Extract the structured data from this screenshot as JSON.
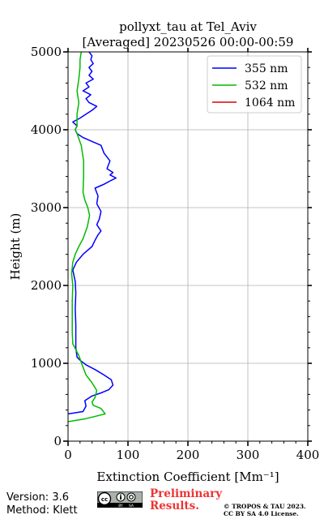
{
  "chart_data": {
    "type": "line",
    "title": "pollyxt_tau at Tel_Aviv",
    "subtitle": "[Averaged] 20230526 00:00-00:59",
    "xlabel": "Extinction Coefficient [Mm⁻¹]",
    "ylabel": "Height (m)",
    "xlim": [
      0,
      400
    ],
    "ylim": [
      0,
      5000
    ],
    "x_ticks": [
      "0",
      "100",
      "200",
      "300",
      "400"
    ],
    "y_ticks": [
      "0",
      "1000",
      "2000",
      "3000",
      "4000",
      "5000"
    ],
    "grid": true,
    "legend_position": "top-right",
    "series": [
      {
        "name": "355 nm",
        "color": "#0000ff",
        "points": [
          [
            0,
            350
          ],
          [
            25,
            380
          ],
          [
            30,
            450
          ],
          [
            28,
            520
          ],
          [
            40,
            580
          ],
          [
            55,
            620
          ],
          [
            68,
            660
          ],
          [
            75,
            720
          ],
          [
            72,
            790
          ],
          [
            60,
            850
          ],
          [
            45,
            920
          ],
          [
            30,
            980
          ],
          [
            20,
            1040
          ],
          [
            15,
            1080
          ],
          [
            13,
            1200
          ],
          [
            13,
            1500
          ],
          [
            12,
            1700
          ],
          [
            13,
            1900
          ],
          [
            12,
            2050
          ],
          [
            8,
            2200
          ],
          [
            14,
            2300
          ],
          [
            25,
            2400
          ],
          [
            40,
            2500
          ],
          [
            45,
            2580
          ],
          [
            50,
            2650
          ],
          [
            55,
            2700
          ],
          [
            48,
            2780
          ],
          [
            52,
            2850
          ],
          [
            55,
            2950
          ],
          [
            48,
            3050
          ],
          [
            50,
            3150
          ],
          [
            45,
            3250
          ],
          [
            60,
            3300
          ],
          [
            72,
            3350
          ],
          [
            80,
            3380
          ],
          [
            70,
            3420
          ],
          [
            75,
            3450
          ],
          [
            65,
            3500
          ],
          [
            70,
            3600
          ],
          [
            60,
            3700
          ],
          [
            55,
            3800
          ],
          [
            40,
            3850
          ],
          [
            25,
            3900
          ],
          [
            15,
            3950
          ],
          [
            12,
            4000
          ],
          [
            15,
            4050
          ],
          [
            8,
            4100
          ],
          [
            20,
            4150
          ],
          [
            30,
            4200
          ],
          [
            40,
            4250
          ],
          [
            48,
            4300
          ],
          [
            35,
            4350
          ],
          [
            30,
            4400
          ],
          [
            38,
            4450
          ],
          [
            25,
            4500
          ],
          [
            35,
            4550
          ],
          [
            30,
            4600
          ],
          [
            42,
            4650
          ],
          [
            35,
            4700
          ],
          [
            40,
            4750
          ],
          [
            35,
            4800
          ],
          [
            42,
            4850
          ],
          [
            38,
            4900
          ],
          [
            40,
            4950
          ],
          [
            35,
            5000
          ]
        ]
      },
      {
        "name": "532 nm",
        "color": "#00bb00",
        "points": [
          [
            0,
            250
          ],
          [
            30,
            290
          ],
          [
            62,
            350
          ],
          [
            55,
            420
          ],
          [
            42,
            460
          ],
          [
            40,
            500
          ],
          [
            45,
            560
          ],
          [
            48,
            650
          ],
          [
            40,
            750
          ],
          [
            30,
            850
          ],
          [
            25,
            950
          ],
          [
            18,
            1100
          ],
          [
            8,
            1250
          ],
          [
            7,
            1400
          ],
          [
            7,
            1600
          ],
          [
            7,
            1800
          ],
          [
            8,
            2000
          ],
          [
            6,
            2150
          ],
          [
            8,
            2300
          ],
          [
            12,
            2400
          ],
          [
            18,
            2500
          ],
          [
            25,
            2600
          ],
          [
            32,
            2750
          ],
          [
            36,
            2900
          ],
          [
            33,
            3000
          ],
          [
            28,
            3100
          ],
          [
            25,
            3200
          ],
          [
            26,
            3400
          ],
          [
            26,
            3600
          ],
          [
            22,
            3800
          ],
          [
            15,
            3950
          ],
          [
            12,
            4000
          ],
          [
            15,
            4050
          ],
          [
            15,
            4200
          ],
          [
            18,
            4350
          ],
          [
            15,
            4500
          ],
          [
            18,
            4650
          ],
          [
            20,
            4800
          ],
          [
            20,
            4900
          ],
          [
            22,
            5000
          ]
        ]
      },
      {
        "name": "1064 nm",
        "color": "#dd0000",
        "points": []
      }
    ]
  },
  "footer": {
    "version": "Version: 3.6",
    "method": "Method: Klett",
    "preliminary_line1": "Preliminary",
    "preliminary_line2": "Results.",
    "copyright_line1": "© TROPOS & TAU 2023.",
    "copyright_line2": "CC BY SA 4.0 License."
  },
  "license_badge": {
    "icon": "cc-by-sa-icon",
    "labels": [
      "BY",
      "SA"
    ]
  }
}
